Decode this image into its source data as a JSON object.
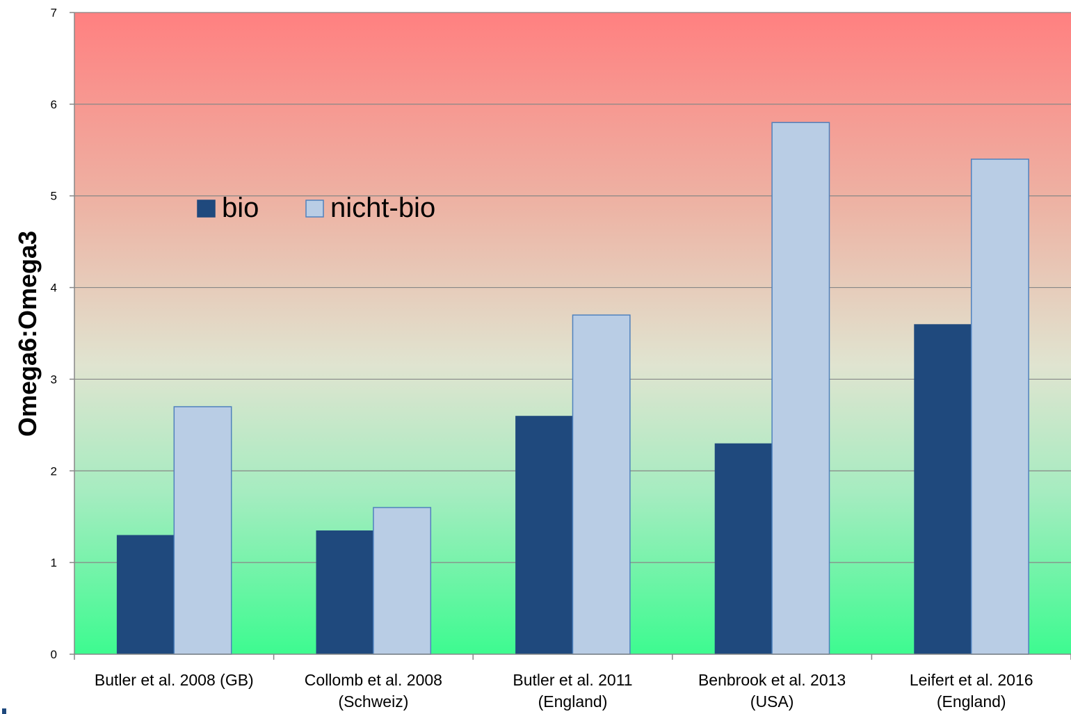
{
  "chart_data": {
    "type": "bar",
    "title": "",
    "xlabel": "",
    "ylabel": "Omega6:Omega3",
    "ylim": [
      0,
      7
    ],
    "yticks": [
      "0",
      "1",
      "2",
      "3",
      "4",
      "5",
      "6",
      "7"
    ],
    "grid": true,
    "legend_position": "upper-left inside plot",
    "background": "vertical gradient: green (bottom) to red (top)",
    "categories": [
      [
        "Butler et al. 2008 (GB)"
      ],
      [
        "Collomb et al. 2008",
        "(Schweiz)"
      ],
      [
        "Butler et al. 2011",
        "(England)"
      ],
      [
        "Benbrook et al. 2013",
        "(USA)"
      ],
      [
        "Leifert et al. 2016",
        "(England)"
      ]
    ],
    "series": [
      {
        "name": "bio",
        "color": "#1f497d",
        "values": [
          1.3,
          1.35,
          2.6,
          2.3,
          3.6
        ]
      },
      {
        "name": "nicht-bio",
        "color": "#b9cde5",
        "values": [
          2.7,
          1.6,
          3.7,
          5.8,
          5.4
        ]
      }
    ],
    "colors": {
      "gradient_top": "#ff8080",
      "gradient_middle": "#e0e4d0",
      "gradient_bottom": "#3dfb90",
      "bar_border": "#4f81bd",
      "gridline": "#878787",
      "axis": "#878787"
    }
  }
}
